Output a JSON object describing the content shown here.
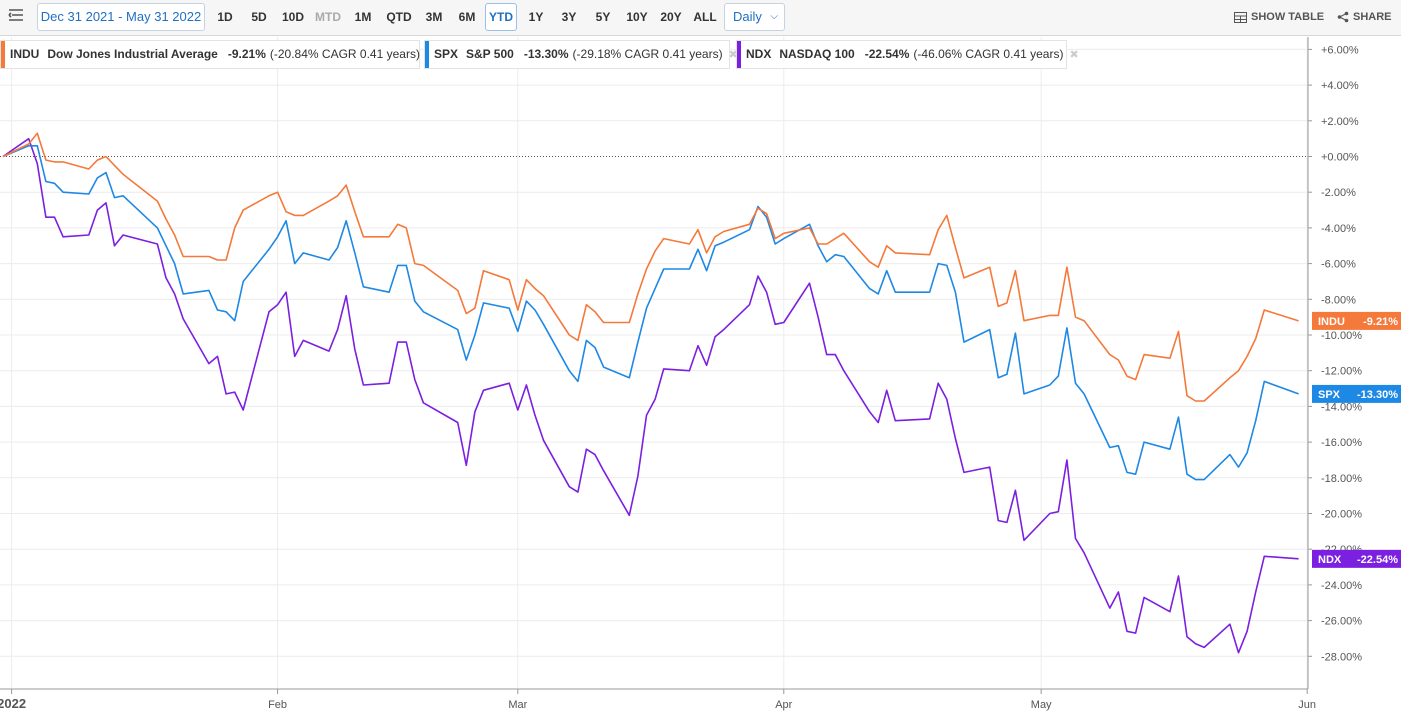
{
  "toolbar": {
    "date_range": "Dec 31 2021 - May 31 2022",
    "ranges": [
      {
        "label": "1D",
        "state": "normal"
      },
      {
        "label": "5D",
        "state": "normal"
      },
      {
        "label": "10D",
        "state": "normal"
      },
      {
        "label": "MTD",
        "state": "disabled"
      },
      {
        "label": "1M",
        "state": "normal"
      },
      {
        "label": "QTD",
        "state": "normal"
      },
      {
        "label": "3M",
        "state": "normal"
      },
      {
        "label": "6M",
        "state": "normal"
      },
      {
        "label": "YTD",
        "state": "active"
      },
      {
        "label": "1Y",
        "state": "normal"
      },
      {
        "label": "3Y",
        "state": "normal"
      },
      {
        "label": "5Y",
        "state": "normal"
      },
      {
        "label": "10Y",
        "state": "normal"
      },
      {
        "label": "20Y",
        "state": "normal"
      },
      {
        "label": "ALL",
        "state": "normal"
      }
    ],
    "interval": "Daily",
    "show_table": "SHOW TABLE",
    "share": "SHARE"
  },
  "legend": [
    {
      "symbol": "INDU",
      "name": "Dow Jones Industrial Average",
      "change": "-9.21%",
      "detail": "(-20.84% CAGR 0.41 years)",
      "color": "#f4793b"
    },
    {
      "symbol": "SPX",
      "name": "S&P 500",
      "change": "-13.30%",
      "detail": "(-29.18% CAGR 0.41 years)",
      "color": "#1e88e5"
    },
    {
      "symbol": "NDX",
      "name": "NASDAQ 100",
      "change": "-22.54%",
      "detail": "(-46.06% CAGR 0.41 years)",
      "color": "#7b1fe0"
    }
  ],
  "chart_data": {
    "type": "line",
    "ylim": [
      -29,
      6.5
    ],
    "y_ticks": [
      6,
      4,
      2,
      0,
      -2,
      -4,
      -6,
      -8,
      -10,
      -12,
      -14,
      -16,
      -18,
      -20,
      -22,
      -24,
      -26,
      -28
    ],
    "y_tick_labels": [
      "+6.00%",
      "+4.00%",
      "+2.00%",
      "+0.00%",
      "-2.00%",
      "-4.00%",
      "-6.00%",
      "-8.00%",
      "-10.00%",
      "-12.00%",
      "-14.00%",
      "-16.00%",
      "-18.00%",
      "-20.00%",
      "-22.00%",
      "-24.00%",
      "-26.00%",
      "-28.00%"
    ],
    "x_range": [
      "2021-12-31",
      "2022-06-01"
    ],
    "x_ticks": [
      {
        "date": "2022-01-01",
        "label": "2022"
      },
      {
        "date": "2022-02-01",
        "label": "Feb"
      },
      {
        "date": "2022-03-01",
        "label": "Mar"
      },
      {
        "date": "2022-04-01",
        "label": "Apr"
      },
      {
        "date": "2022-05-01",
        "label": "May"
      },
      {
        "date": "2022-06-01",
        "label": "Jun"
      }
    ],
    "dates": [
      "2021-12-31",
      "2022-01-03",
      "2022-01-04",
      "2022-01-05",
      "2022-01-06",
      "2022-01-07",
      "2022-01-10",
      "2022-01-11",
      "2022-01-12",
      "2022-01-13",
      "2022-01-14",
      "2022-01-18",
      "2022-01-19",
      "2022-01-20",
      "2022-01-21",
      "2022-01-24",
      "2022-01-25",
      "2022-01-26",
      "2022-01-27",
      "2022-01-28",
      "2022-01-31",
      "2022-02-01",
      "2022-02-02",
      "2022-02-03",
      "2022-02-04",
      "2022-02-07",
      "2022-02-08",
      "2022-02-09",
      "2022-02-10",
      "2022-02-11",
      "2022-02-14",
      "2022-02-15",
      "2022-02-16",
      "2022-02-17",
      "2022-02-18",
      "2022-02-22",
      "2022-02-23",
      "2022-02-24",
      "2022-02-25",
      "2022-02-28",
      "2022-03-01",
      "2022-03-02",
      "2022-03-03",
      "2022-03-04",
      "2022-03-07",
      "2022-03-08",
      "2022-03-09",
      "2022-03-10",
      "2022-03-11",
      "2022-03-14",
      "2022-03-15",
      "2022-03-16",
      "2022-03-17",
      "2022-03-18",
      "2022-03-21",
      "2022-03-22",
      "2022-03-23",
      "2022-03-24",
      "2022-03-25",
      "2022-03-28",
      "2022-03-29",
      "2022-03-30",
      "2022-03-31",
      "2022-04-01",
      "2022-04-04",
      "2022-04-05",
      "2022-04-06",
      "2022-04-07",
      "2022-04-08",
      "2022-04-11",
      "2022-04-12",
      "2022-04-13",
      "2022-04-14",
      "2022-04-18",
      "2022-04-19",
      "2022-04-20",
      "2022-04-21",
      "2022-04-22",
      "2022-04-25",
      "2022-04-26",
      "2022-04-27",
      "2022-04-28",
      "2022-04-29",
      "2022-05-02",
      "2022-05-03",
      "2022-05-04",
      "2022-05-05",
      "2022-05-06",
      "2022-05-09",
      "2022-05-10",
      "2022-05-11",
      "2022-05-12",
      "2022-05-13",
      "2022-05-16",
      "2022-05-17",
      "2022-05-18",
      "2022-05-19",
      "2022-05-20",
      "2022-05-23",
      "2022-05-24",
      "2022-05-25",
      "2022-05-26",
      "2022-05-27",
      "2022-05-31"
    ],
    "series": [
      {
        "name": "INDU",
        "color": "#f4793b",
        "label": "-9.21%",
        "values": [
          0,
          0.7,
          1.3,
          -0.2,
          -0.3,
          -0.3,
          -0.7,
          -0.2,
          0.0,
          -0.5,
          -1.0,
          -2.5,
          -3.5,
          -4.4,
          -5.6,
          -5.6,
          -5.8,
          -5.8,
          -4.0,
          -3.0,
          -2.2,
          -2.0,
          -3.1,
          -3.3,
          -3.3,
          -2.5,
          -2.2,
          -1.6,
          -3.1,
          -4.5,
          -4.5,
          -3.8,
          -4.0,
          -6.0,
          -6.1,
          -7.5,
          -8.8,
          -8.5,
          -6.4,
          -6.9,
          -8.6,
          -6.9,
          -7.4,
          -7.8,
          -10.0,
          -10.3,
          -8.3,
          -8.7,
          -9.3,
          -9.3,
          -7.7,
          -6.3,
          -5.3,
          -4.6,
          -4.9,
          -4.1,
          -5.4,
          -4.5,
          -4.2,
          -3.8,
          -2.9,
          -3.2,
          -4.6,
          -4.3,
          -4.0,
          -4.9,
          -4.9,
          -4.6,
          -4.3,
          -5.9,
          -6.2,
          -5.0,
          -5.4,
          -5.5,
          -4.1,
          -3.3,
          -5.1,
          -6.8,
          -6.2,
          -8.4,
          -8.2,
          -6.4,
          -9.2,
          -8.9,
          -8.9,
          -6.2,
          -9.0,
          -9.2,
          -11.1,
          -11.4,
          -12.3,
          -12.5,
          -11.1,
          -11.3,
          -9.8,
          -13.4,
          -13.7,
          -13.7,
          -12.4,
          -12.0,
          -11.2,
          -10.2,
          -8.6,
          -9.21
        ]
      },
      {
        "name": "SPX",
        "color": "#1e88e5",
        "label": "-13.30%",
        "values": [
          0,
          0.6,
          0.6,
          -1.4,
          -1.5,
          -2.0,
          -2.1,
          -1.2,
          -0.9,
          -2.3,
          -2.2,
          -4.0,
          -5.0,
          -6.0,
          -7.7,
          -7.5,
          -8.6,
          -8.7,
          -9.2,
          -7.0,
          -5.2,
          -4.5,
          -3.6,
          -6.0,
          -5.4,
          -5.8,
          -5.1,
          -3.6,
          -5.4,
          -7.3,
          -7.6,
          -6.1,
          -6.1,
          -8.1,
          -8.7,
          -9.7,
          -11.4,
          -10.0,
          -8.2,
          -8.5,
          -9.8,
          -8.1,
          -8.6,
          -9.4,
          -12.0,
          -12.6,
          -10.3,
          -10.7,
          -11.8,
          -12.4,
          -10.4,
          -8.5,
          -7.4,
          -6.3,
          -6.3,
          -5.2,
          -6.4,
          -5.0,
          -4.8,
          -4.1,
          -2.8,
          -3.4,
          -4.9,
          -4.6,
          -3.8,
          -5.0,
          -5.9,
          -5.5,
          -5.6,
          -7.4,
          -7.7,
          -6.4,
          -7.6,
          -7.6,
          -6.0,
          -6.1,
          -7.6,
          -10.4,
          -9.7,
          -12.4,
          -12.2,
          -9.9,
          -13.3,
          -12.8,
          -12.3,
          -9.6,
          -12.7,
          -13.3,
          -16.3,
          -16.2,
          -17.7,
          -17.8,
          -16.0,
          -16.4,
          -14.6,
          -17.8,
          -18.1,
          -18.1,
          -16.7,
          -17.4,
          -16.6,
          -14.8,
          -12.6,
          -13.3
        ]
      },
      {
        "name": "NDX",
        "color": "#7b1fe0",
        "label": "-22.54%",
        "values": [
          0,
          1.0,
          -0.4,
          -3.4,
          -3.4,
          -4.5,
          -4.4,
          -3.0,
          -2.6,
          -5.0,
          -4.4,
          -4.9,
          -6.8,
          -7.7,
          -9.1,
          -11.6,
          -11.2,
          -13.3,
          -13.2,
          -14.2,
          -8.7,
          -8.3,
          -7.6,
          -11.2,
          -10.3,
          -10.9,
          -9.7,
          -7.8,
          -10.8,
          -12.8,
          -12.7,
          -10.4,
          -10.4,
          -12.5,
          -13.8,
          -14.9,
          -17.3,
          -14.3,
          -13.1,
          -12.7,
          -14.2,
          -12.8,
          -14.5,
          -15.9,
          -18.5,
          -18.8,
          -16.4,
          -16.7,
          -17.6,
          -20.1,
          -17.9,
          -14.5,
          -13.6,
          -11.9,
          -12.0,
          -10.6,
          -11.7,
          -10.1,
          -9.7,
          -8.3,
          -6.7,
          -7.6,
          -9.4,
          -9.3,
          -7.1,
          -9.0,
          -11.1,
          -11.1,
          -12.0,
          -14.3,
          -14.9,
          -13.1,
          -14.8,
          -14.7,
          -12.7,
          -13.6,
          -15.8,
          -17.7,
          -17.4,
          -20.4,
          -20.5,
          -18.7,
          -21.5,
          -20.0,
          -19.9,
          -17.0,
          -21.4,
          -22.2,
          -25.3,
          -24.4,
          -26.6,
          -26.7,
          -24.7,
          -25.5,
          -23.5,
          -26.9,
          -27.3,
          -27.5,
          -26.2,
          -27.8,
          -26.6,
          -24.4,
          -22.4,
          -22.54
        ]
      }
    ]
  }
}
